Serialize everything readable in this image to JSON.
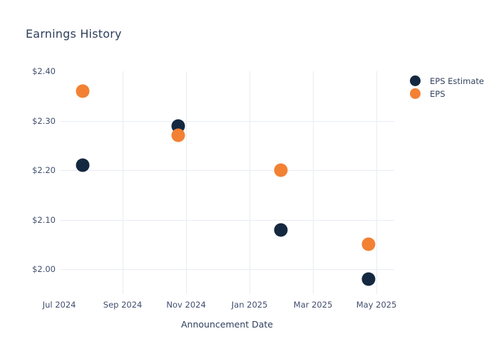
{
  "page": {
    "background": "#ffffff"
  },
  "chart_data": {
    "type": "scatter",
    "title": "Earnings History",
    "xlabel": "Announcement Date",
    "ylabel": "",
    "grid": true,
    "legend_position": "right-top",
    "colors": {
      "eps_estimate": "#142840",
      "eps": "#f28134",
      "gridline": "#e8ecf5",
      "title_text": "#2e3f5c",
      "tick_text": "#3f4e6d"
    },
    "x_axis": {
      "unit": "months since Jul 1, 2024",
      "lim": [
        0.02,
        10.56
      ],
      "ticks": [
        {
          "label": "Jul 2024",
          "x": 0,
          "gridline": false
        },
        {
          "label": "Sep 2024",
          "x": 2,
          "gridline": true
        },
        {
          "label": "Nov 2024",
          "x": 4,
          "gridline": true
        },
        {
          "label": "Jan 2025",
          "x": 6,
          "gridline": true
        },
        {
          "label": "Mar 2025",
          "x": 8,
          "gridline": true
        },
        {
          "label": "May 2025",
          "x": 10,
          "gridline": true
        }
      ]
    },
    "y_axis": {
      "lim": [
        1.95,
        2.4
      ],
      "ticks": [
        {
          "label": "$2.40",
          "value": 2.4,
          "gridline": false
        },
        {
          "label": "$2.30",
          "value": 2.3,
          "gridline": true
        },
        {
          "label": "$2.20",
          "value": 2.2,
          "gridline": true
        },
        {
          "label": "$2.10",
          "value": 2.1,
          "gridline": true
        },
        {
          "label": "$2.00",
          "value": 2.0,
          "gridline": true
        }
      ]
    },
    "series": [
      {
        "name": "EPS Estimate",
        "color": "#142840",
        "marker_size": 19,
        "points": [
          {
            "x": 0.74,
            "approx_date": "late Jul 2024",
            "value": 2.21
          },
          {
            "x": 3.76,
            "approx_date": "late Oct 2024",
            "value": 2.29
          },
          {
            "x": 6.98,
            "approx_date": "late Jan 2025",
            "value": 2.08
          },
          {
            "x": 9.75,
            "approx_date": "late Apr 2025",
            "value": 1.98
          }
        ]
      },
      {
        "name": "EPS",
        "color": "#f28134",
        "marker_size": 19,
        "points": [
          {
            "x": 0.74,
            "approx_date": "late Jul 2024",
            "value": 2.36
          },
          {
            "x": 3.76,
            "approx_date": "late Oct 2024",
            "value": 2.27
          },
          {
            "x": 6.98,
            "approx_date": "late Jan 2025",
            "value": 2.2
          },
          {
            "x": 9.75,
            "approx_date": "late Apr 2025",
            "value": 2.05
          }
        ]
      }
    ]
  }
}
